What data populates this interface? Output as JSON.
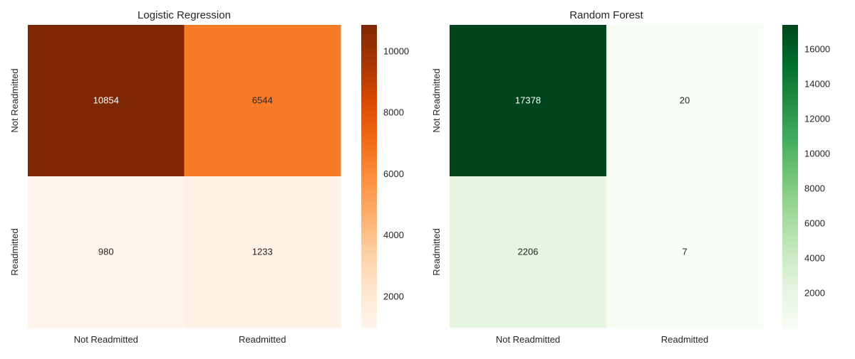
{
  "chart_data": [
    {
      "type": "heatmap",
      "title": "Logistic Regression",
      "x_categories": [
        "Not Readmitted",
        "Readmitted"
      ],
      "y_categories": [
        "Not Readmitted",
        "Readmitted"
      ],
      "values": [
        [
          10854,
          6544
        ],
        [
          980,
          1233
        ]
      ],
      "colormap": "Oranges",
      "colorbar": {
        "range": [
          980,
          10854
        ],
        "ticks": [
          2000,
          4000,
          6000,
          8000,
          10000
        ]
      },
      "grid": false
    },
    {
      "type": "heatmap",
      "title": "Random Forest",
      "x_categories": [
        "Not Readmitted",
        "Readmitted"
      ],
      "y_categories": [
        "Not Readmitted",
        "Readmitted"
      ],
      "values": [
        [
          17378,
          20
        ],
        [
          2206,
          7
        ]
      ],
      "colormap": "Greens",
      "colorbar": {
        "range": [
          7,
          17378
        ],
        "ticks": [
          2000,
          4000,
          6000,
          8000,
          10000,
          12000,
          14000,
          16000
        ]
      },
      "grid": false
    }
  ],
  "colormaps": {
    "Oranges": [
      "#fff5eb",
      "#fee6ce",
      "#fdd0a2",
      "#fdae6b",
      "#fd8d3c",
      "#f16913",
      "#d94801",
      "#a63603",
      "#7f2704"
    ],
    "Greens": [
      "#f7fcf5",
      "#e5f5e0",
      "#c7e9c0",
      "#a1d99b",
      "#74c476",
      "#41ab5d",
      "#238b45",
      "#006d2c",
      "#00441b"
    ]
  }
}
